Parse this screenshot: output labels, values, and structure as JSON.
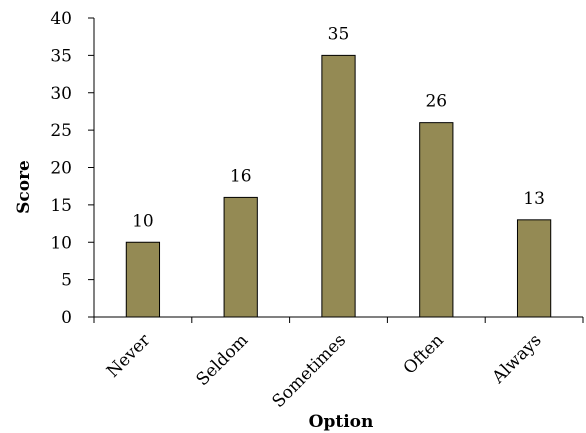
{
  "chart_data": {
    "type": "bar",
    "title": "",
    "xlabel": "Option",
    "ylabel": "Score",
    "categories": [
      "Never",
      "Seldom",
      "Sometimes",
      "Often",
      "Always"
    ],
    "values": [
      10,
      16,
      35,
      26,
      13
    ],
    "data_labels": [
      "10",
      "16",
      "35",
      "26",
      "13"
    ],
    "ylim": [
      0,
      40
    ],
    "yticks": [
      0,
      5,
      10,
      15,
      20,
      25,
      30,
      35,
      40
    ],
    "ytick_labels": [
      "0",
      "5",
      "10",
      "15",
      "20",
      "25",
      "30",
      "35",
      "40"
    ],
    "grid": false,
    "legend": "none",
    "bar_color": "#948a54"
  }
}
